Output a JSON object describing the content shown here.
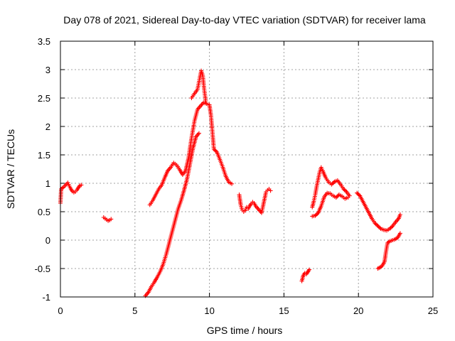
{
  "chart_data": {
    "type": "scatter",
    "title": "Day 078 of 2021, Sidereal Day-to-day VTEC variation (SDTVAR) for receiver lama",
    "xlabel": "GPS time / hours",
    "ylabel": "SDTVAR / TECUs",
    "xlim": [
      0,
      25
    ],
    "ylim": [
      -1,
      3.5
    ],
    "xticks": [
      0,
      5,
      10,
      15,
      20,
      25
    ],
    "yticks": [
      -1,
      -0.5,
      0,
      0.5,
      1,
      1.5,
      2,
      2.5,
      3,
      3.5
    ],
    "grid": true,
    "marker": "+",
    "series": [
      {
        "name": "SDTVAR",
        "color": "#ff0000",
        "segments": [
          [
            [
              0.0,
              0.65
            ],
            [
              0.05,
              0.9
            ],
            [
              0.2,
              0.93
            ],
            [
              0.35,
              0.97
            ],
            [
              0.5,
              1.01
            ],
            [
              0.6,
              0.95
            ],
            [
              0.7,
              0.9
            ],
            [
              0.8,
              0.86
            ],
            [
              0.9,
              0.84
            ],
            [
              1.0,
              0.85
            ],
            [
              1.1,
              0.88
            ],
            [
              1.2,
              0.92
            ],
            [
              1.3,
              0.96
            ],
            [
              1.4,
              0.97
            ]
          ],
          [
            [
              2.9,
              0.4
            ],
            [
              3.0,
              0.38
            ],
            [
              3.1,
              0.36
            ],
            [
              3.2,
              0.34
            ],
            [
              3.3,
              0.35
            ],
            [
              3.4,
              0.37
            ]
          ],
          [
            [
              5.7,
              -0.98
            ],
            [
              5.9,
              -0.92
            ],
            [
              6.1,
              -0.82
            ],
            [
              6.3,
              -0.74
            ],
            [
              6.5,
              -0.65
            ],
            [
              6.7,
              -0.55
            ],
            [
              6.9,
              -0.42
            ],
            [
              7.1,
              -0.25
            ],
            [
              7.3,
              -0.05
            ],
            [
              7.5,
              0.15
            ],
            [
              7.7,
              0.35
            ],
            [
              7.9,
              0.55
            ],
            [
              8.1,
              0.7
            ],
            [
              8.3,
              0.88
            ],
            [
              8.5,
              1.08
            ],
            [
              8.7,
              1.35
            ],
            [
              8.9,
              1.62
            ],
            [
              9.1,
              1.82
            ],
            [
              9.3,
              1.88
            ]
          ],
          [
            [
              6.0,
              0.62
            ],
            [
              6.2,
              0.7
            ],
            [
              6.4,
              0.8
            ],
            [
              6.6,
              0.9
            ],
            [
              6.8,
              0.97
            ],
            [
              7.0,
              1.1
            ],
            [
              7.2,
              1.22
            ],
            [
              7.4,
              1.28
            ],
            [
              7.6,
              1.36
            ],
            [
              7.8,
              1.32
            ],
            [
              8.0,
              1.24
            ],
            [
              8.2,
              1.15
            ],
            [
              8.4,
              1.22
            ],
            [
              8.6,
              1.45
            ],
            [
              8.8,
              1.8
            ],
            [
              9.0,
              2.1
            ],
            [
              9.2,
              2.3
            ],
            [
              9.4,
              2.36
            ],
            [
              9.6,
              2.42
            ],
            [
              9.8,
              2.4
            ],
            [
              10.0,
              2.38
            ],
            [
              10.1,
              2.2
            ],
            [
              10.2,
              1.9
            ],
            [
              10.3,
              1.6
            ],
            [
              10.5,
              1.55
            ],
            [
              10.7,
              1.42
            ],
            [
              10.9,
              1.28
            ],
            [
              11.1,
              1.12
            ],
            [
              11.3,
              1.02
            ],
            [
              11.5,
              0.99
            ]
          ],
          [
            [
              8.8,
              2.5
            ],
            [
              9.0,
              2.58
            ],
            [
              9.2,
              2.65
            ],
            [
              9.35,
              2.85
            ],
            [
              9.45,
              2.98
            ],
            [
              9.55,
              2.9
            ],
            [
              9.65,
              2.65
            ],
            [
              9.75,
              2.45
            ]
          ],
          [
            [
              12.0,
              0.8
            ],
            [
              12.1,
              0.62
            ],
            [
              12.2,
              0.53
            ],
            [
              12.3,
              0.5
            ],
            [
              12.4,
              0.52
            ],
            [
              12.5,
              0.58
            ],
            [
              12.6,
              0.55
            ],
            [
              12.7,
              0.6
            ],
            [
              12.8,
              0.64
            ],
            [
              12.9,
              0.67
            ],
            [
              13.0,
              0.65
            ],
            [
              13.1,
              0.6
            ],
            [
              13.5,
              0.48
            ],
            [
              13.8,
              0.85
            ],
            [
              13.9,
              0.88
            ],
            [
              14.0,
              0.9
            ],
            [
              14.1,
              0.87
            ]
          ],
          [
            [
              16.2,
              -0.72
            ],
            [
              16.3,
              -0.62
            ],
            [
              16.4,
              -0.58
            ],
            [
              16.5,
              -0.6
            ],
            [
              16.6,
              -0.56
            ],
            [
              16.7,
              -0.52
            ]
          ],
          [
            [
              16.9,
              0.42
            ],
            [
              17.1,
              0.43
            ],
            [
              17.3,
              0.48
            ],
            [
              17.5,
              0.6
            ],
            [
              17.7,
              0.76
            ],
            [
              17.9,
              0.83
            ],
            [
              18.1,
              0.82
            ],
            [
              18.3,
              0.78
            ],
            [
              18.5,
              0.75
            ],
            [
              18.7,
              0.8
            ],
            [
              18.9,
              0.77
            ],
            [
              19.1,
              0.73
            ],
            [
              19.3,
              0.75
            ]
          ],
          [
            [
              16.9,
              0.58
            ],
            [
              17.0,
              0.68
            ],
            [
              17.1,
              0.8
            ],
            [
              17.2,
              0.95
            ],
            [
              17.4,
              1.2
            ],
            [
              17.5,
              1.28
            ],
            [
              17.6,
              1.22
            ],
            [
              17.8,
              1.1
            ],
            [
              18.0,
              1.02
            ],
            [
              18.2,
              0.98
            ],
            [
              18.4,
              1.03
            ],
            [
              18.6,
              1.05
            ],
            [
              18.8,
              0.98
            ],
            [
              19.0,
              0.9
            ],
            [
              19.2,
              0.85
            ],
            [
              19.4,
              0.78
            ]
          ],
          [
            [
              19.9,
              0.83
            ],
            [
              20.1,
              0.78
            ],
            [
              20.3,
              0.68
            ],
            [
              20.5,
              0.58
            ],
            [
              20.7,
              0.48
            ],
            [
              20.9,
              0.38
            ],
            [
              21.1,
              0.3
            ],
            [
              21.3,
              0.25
            ],
            [
              21.5,
              0.2
            ],
            [
              21.7,
              0.18
            ],
            [
              21.9,
              0.17
            ],
            [
              22.1,
              0.2
            ],
            [
              22.3,
              0.25
            ],
            [
              22.5,
              0.32
            ],
            [
              22.7,
              0.38
            ],
            [
              22.8,
              0.45
            ]
          ],
          [
            [
              21.3,
              -0.5
            ],
            [
              21.45,
              -0.48
            ],
            [
              21.6,
              -0.45
            ],
            [
              21.75,
              -0.38
            ],
            [
              21.85,
              -0.2
            ],
            [
              21.95,
              -0.05
            ],
            [
              22.1,
              -0.02
            ],
            [
              22.3,
              0.0
            ],
            [
              22.5,
              0.02
            ],
            [
              22.65,
              0.05
            ],
            [
              22.8,
              0.12
            ]
          ]
        ]
      }
    ]
  }
}
